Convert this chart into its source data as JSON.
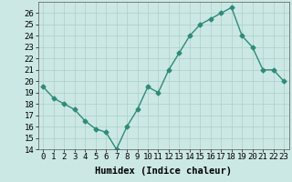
{
  "x": [
    0,
    1,
    2,
    3,
    4,
    5,
    6,
    7,
    8,
    9,
    10,
    11,
    12,
    13,
    14,
    15,
    16,
    17,
    18,
    19,
    20,
    21,
    22,
    23
  ],
  "y": [
    19.5,
    18.5,
    18.0,
    17.5,
    16.5,
    15.8,
    15.5,
    14.0,
    16.0,
    17.5,
    19.5,
    19.0,
    21.0,
    22.5,
    24.0,
    25.0,
    25.5,
    26.0,
    26.5,
    24.0,
    23.0,
    21.0,
    21.0,
    20.0
  ],
  "line_color": "#2e8b7a",
  "marker": "D",
  "markersize": 2.5,
  "linewidth": 1.0,
  "xlabel": "Humidex (Indice chaleur)",
  "xlim": [
    -0.5,
    23.5
  ],
  "ylim": [
    14,
    27
  ],
  "yticks": [
    14,
    15,
    16,
    17,
    18,
    19,
    20,
    21,
    22,
    23,
    24,
    25,
    26
  ],
  "bg_color": "#cce8e4",
  "grid_color": "#aacfcb",
  "axis_fontsize": 7.5,
  "tick_fontsize": 6.5
}
